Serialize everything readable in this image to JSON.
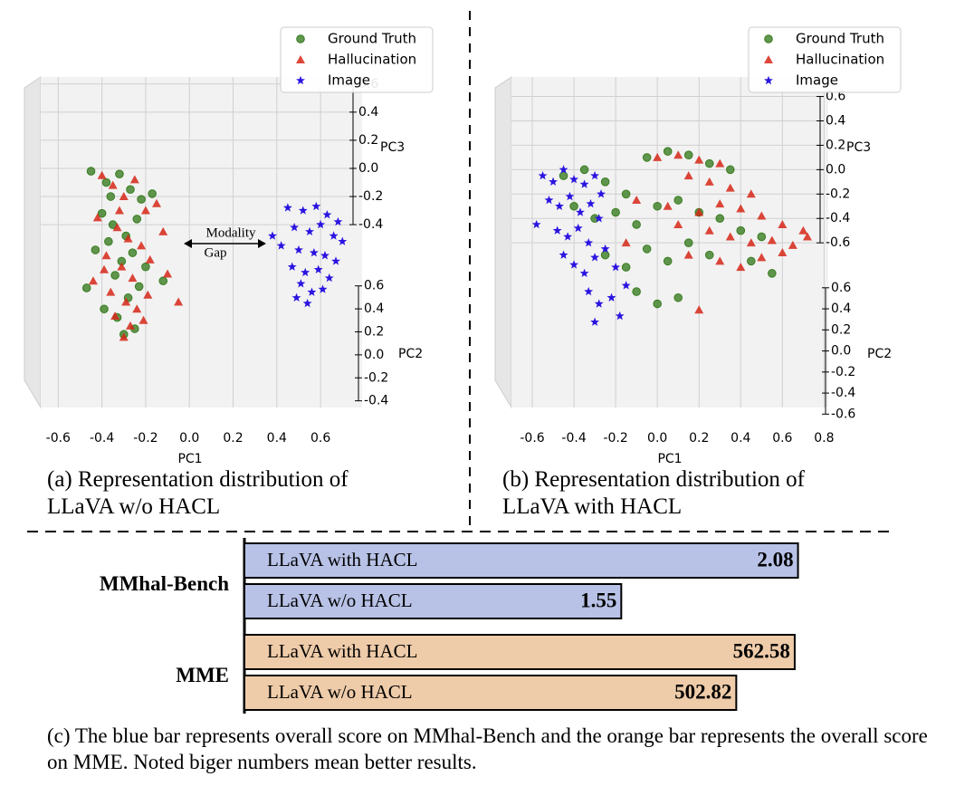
{
  "chart_data": [
    {
      "type": "scatter3d",
      "caption": "(a) Representation distribution of LLaVA w/o HACL",
      "xlabel": "PC1",
      "ylabel": "PC3",
      "zlabel": "PC2",
      "xlim": [
        -0.68,
        0.79
      ],
      "xticks": [
        -0.6,
        -0.4,
        -0.2,
        {
          "value": 0,
          "label": "0.0"
        },
        0.2,
        0.4,
        0.6
      ],
      "ylim": [
        -1.7,
        0.65
      ],
      "yticks": [
        0.6,
        0.4,
        0.2,
        {
          "value": 0,
          "label": "0.0"
        },
        -0.2,
        -0.4
      ],
      "zlim": [
        -0.45,
        0.7
      ],
      "zticks": [
        0.6,
        0.4,
        0.2,
        {
          "value": 0,
          "label": "0.0"
        },
        -0.2,
        -0.4
      ],
      "grid": true,
      "annotation": [
        "Modality",
        "Gap"
      ],
      "series": [
        {
          "name": "Ground Truth",
          "color": "#3a7d22",
          "marker": "o",
          "x": [
            -0.45,
            -0.38,
            -0.32,
            -0.27,
            -0.22,
            -0.17,
            -0.4,
            -0.35,
            -0.29,
            -0.24,
            -0.43,
            -0.37,
            -0.31,
            -0.26,
            -0.2,
            -0.47,
            -0.34,
            -0.28,
            -0.23,
            -0.39,
            -0.33,
            -0.25,
            -0.12,
            -0.36,
            -0.3
          ],
          "y": [
            -0.02,
            -0.1,
            -0.04,
            -0.15,
            -0.22,
            -0.18,
            -0.32,
            -0.4,
            -0.48,
            -0.36,
            -0.58,
            -0.52,
            -0.66,
            -0.6,
            -0.7,
            -0.85,
            -0.76,
            -0.92,
            -0.84,
            -1.0,
            -1.06,
            -1.14,
            -0.8,
            -0.2,
            -1.18
          ]
        },
        {
          "name": "Hallucination",
          "color": "#d62718",
          "marker": "^",
          "x": [
            -0.4,
            -0.35,
            -0.3,
            -0.25,
            -0.2,
            -0.42,
            -0.33,
            -0.28,
            -0.22,
            -0.15,
            -0.38,
            -0.31,
            -0.26,
            -0.18,
            -0.12,
            -0.44,
            -0.36,
            -0.29,
            -0.24,
            -0.19,
            -0.34,
            -0.27,
            -0.21,
            -0.39,
            -0.3,
            -0.05,
            -0.1,
            -0.32
          ],
          "y": [
            -0.05,
            -0.12,
            -0.2,
            -0.08,
            -0.3,
            -0.35,
            -0.42,
            -0.5,
            -0.55,
            -0.25,
            -0.62,
            -0.7,
            -0.78,
            -0.65,
            -0.45,
            -0.8,
            -0.88,
            -0.95,
            -1.0,
            -0.9,
            -1.05,
            -1.12,
            -1.08,
            -0.72,
            -1.2,
            -0.95,
            -0.75,
            -0.3
          ]
        },
        {
          "name": "Image",
          "color": "#2a14e0",
          "marker": "*",
          "x": [
            0.45,
            0.52,
            0.58,
            0.63,
            0.68,
            0.48,
            0.55,
            0.6,
            0.66,
            0.7,
            0.42,
            0.5,
            0.57,
            0.62,
            0.67,
            0.47,
            0.53,
            0.59,
            0.64,
            0.51,
            0.56,
            0.61,
            0.38,
            0.49,
            0.54
          ],
          "y": [
            -0.28,
            -0.3,
            -0.27,
            -0.33,
            -0.38,
            -0.42,
            -0.45,
            -0.4,
            -0.48,
            -0.52,
            -0.55,
            -0.58,
            -0.6,
            -0.62,
            -0.66,
            -0.7,
            -0.74,
            -0.72,
            -0.78,
            -0.82,
            -0.88,
            -0.86,
            -0.48,
            -0.92,
            -0.96
          ]
        }
      ]
    },
    {
      "type": "scatter3d",
      "caption": "(b) Representation distribution of LLaVA with HACL",
      "xlabel": "PC1",
      "ylabel": "PC3",
      "zlabel": "PC2",
      "xlim": [
        -0.7,
        0.82
      ],
      "xticks": [
        -0.6,
        -0.4,
        -0.2,
        {
          "value": 0,
          "label": "0.0"
        },
        0.2,
        0.4,
        0.6,
        0.8
      ],
      "ylim": [
        -1.95,
        0.76
      ],
      "yticks": [
        0.6,
        0.4,
        0.2,
        {
          "value": 0,
          "label": "0.0"
        },
        -0.2,
        -0.4,
        -0.6
      ],
      "zlim": [
        -0.64,
        0.71
      ],
      "zticks": [
        0.6,
        0.4,
        0.2,
        {
          "value": 0,
          "label": "0.0"
        },
        -0.2,
        -0.4,
        -0.6
      ],
      "grid": true,
      "series": [
        {
          "name": "Ground Truth",
          "color": "#3a7d22",
          "marker": "o",
          "x": [
            -0.45,
            -0.35,
            -0.25,
            -0.15,
            -0.05,
            0.05,
            0.15,
            0.25,
            0.35,
            -0.4,
            -0.3,
            -0.2,
            -0.1,
            0.0,
            0.1,
            0.2,
            0.3,
            0.4,
            0.5,
            -0.25,
            -0.15,
            -0.05,
            0.05,
            0.15,
            0.25,
            0.45,
            0.55,
            -0.1,
            0.0,
            0.1
          ],
          "y": [
            -0.05,
            0.0,
            -0.1,
            -0.2,
            0.1,
            0.15,
            0.12,
            0.05,
            0.0,
            -0.3,
            -0.4,
            -0.35,
            -0.45,
            -0.3,
            -0.25,
            -0.35,
            -0.4,
            -0.5,
            -0.55,
            -0.7,
            -0.8,
            -0.65,
            -0.75,
            -0.6,
            -0.7,
            -0.75,
            -0.85,
            -1.0,
            -1.1,
            -1.05
          ]
        },
        {
          "name": "Hallucination",
          "color": "#d62718",
          "marker": "^",
          "x": [
            0.0,
            0.1,
            0.2,
            0.3,
            0.15,
            0.25,
            0.35,
            0.45,
            -0.1,
            0.05,
            0.2,
            0.3,
            0.4,
            0.5,
            0.6,
            0.7,
            0.1,
            0.25,
            0.35,
            0.45,
            0.55,
            0.65,
            0.72,
            0.15,
            0.3,
            0.4,
            0.5,
            0.6,
            -0.15,
            0.2
          ],
          "y": [
            0.1,
            0.12,
            0.08,
            0.05,
            -0.05,
            -0.1,
            -0.15,
            -0.2,
            -0.25,
            -0.3,
            -0.35,
            -0.28,
            -0.32,
            -0.38,
            -0.45,
            -0.5,
            -0.45,
            -0.5,
            -0.55,
            -0.6,
            -0.58,
            -0.62,
            -0.55,
            -0.7,
            -0.75,
            -0.8,
            -0.72,
            -0.68,
            -0.6,
            -1.15
          ]
        },
        {
          "name": "Image",
          "color": "#2a14e0",
          "marker": "*",
          "x": [
            -0.55,
            -0.5,
            -0.45,
            -0.4,
            -0.35,
            -0.3,
            -0.52,
            -0.47,
            -0.42,
            -0.37,
            -0.32,
            -0.27,
            -0.58,
            -0.48,
            -0.43,
            -0.38,
            -0.33,
            -0.28,
            -0.45,
            -0.4,
            -0.35,
            -0.3,
            -0.25,
            -0.2,
            -0.33,
            -0.28,
            -0.22,
            -0.15,
            -0.3,
            -0.18
          ],
          "y": [
            -0.05,
            -0.1,
            0.0,
            -0.08,
            -0.12,
            -0.05,
            -0.25,
            -0.3,
            -0.22,
            -0.35,
            -0.28,
            -0.2,
            -0.45,
            -0.5,
            -0.55,
            -0.48,
            -0.6,
            -0.4,
            -0.7,
            -0.78,
            -0.85,
            -0.72,
            -0.65,
            -0.8,
            -1.0,
            -1.1,
            -1.05,
            -0.95,
            -1.25,
            -1.2
          ]
        }
      ]
    },
    {
      "type": "hbar",
      "caption": "(c) The blue bar represents overall score on MMhal-Bench and the orange bar represents the overall score on MME. Noted biger numbers mean better results.",
      "groups": [
        {
          "name": "MMhal-Bench",
          "color": "#b8c2e6",
          "xlim": [
            0.42,
            2.13
          ],
          "categories": [
            "LLaVA with HACL",
            "LLaVA w/o HACL"
          ],
          "values": [
            2.08,
            1.55
          ]
        },
        {
          "name": "MME",
          "color": "#eecba9",
          "xlim": [
            0,
            583
          ],
          "categories": [
            "LLaVA with HACL",
            "LLaVA w/o HACL"
          ],
          "values": [
            562.58,
            502.82
          ]
        }
      ]
    }
  ]
}
